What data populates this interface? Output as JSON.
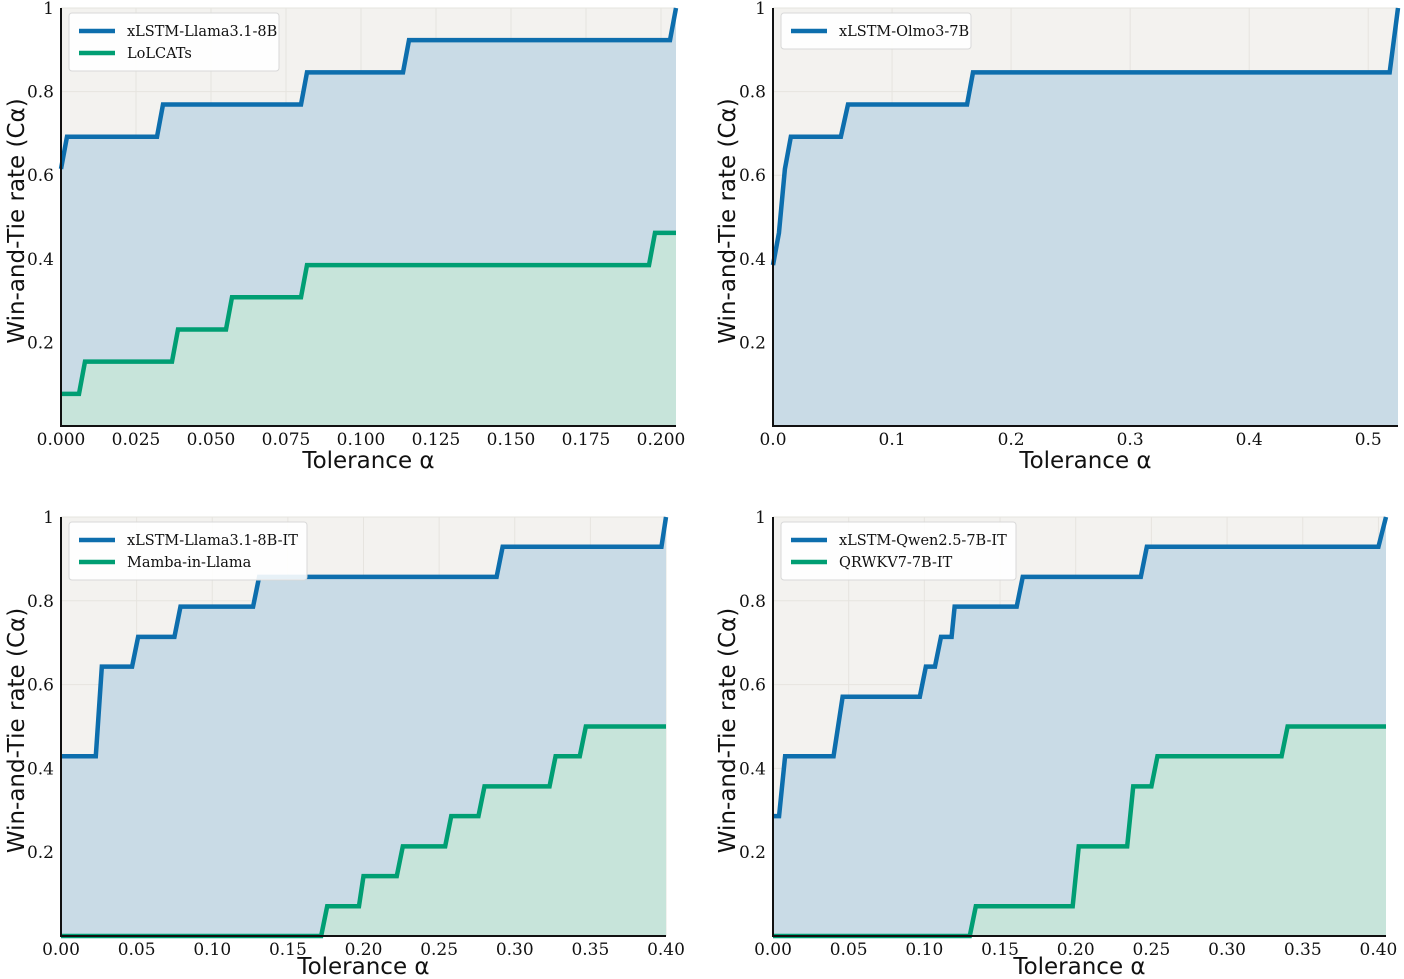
{
  "colors": {
    "blue": "#1f77b4",
    "blue_line": "#0d6ead",
    "green": "#009e73",
    "blue_fill": "#c9dbe6",
    "green_fill": "#c7e4da",
    "plot_bg": "#f3f2ef",
    "grid": "#e6e4df",
    "axis": "#111111"
  },
  "chart_data": [
    {
      "type": "line",
      "title": "",
      "xlabel": "Tolerance α",
      "ylabel": "Win-and-Tie rate (Cα)",
      "xlim": [
        0,
        0.205
      ],
      "ylim": [
        0,
        1
      ],
      "xticks": [
        0.0,
        0.025,
        0.05,
        0.075,
        0.1,
        0.125,
        0.15,
        0.175,
        0.2
      ],
      "xtick_labels": [
        "0.000",
        "0.025",
        "0.050",
        "0.075",
        "0.100",
        "0.125",
        "0.150",
        "0.175",
        "0.200"
      ],
      "yticks": [
        0.2,
        0.4,
        0.6,
        0.8,
        1.0
      ],
      "ytick_labels": [
        "0.2",
        "0.4",
        "0.6",
        "0.8",
        "1"
      ],
      "legend_position": "top-left",
      "series": [
        {
          "name": "xLSTM-Llama3.1-8B",
          "color_key": "blue",
          "x": [
            0.0,
            0.002,
            0.032,
            0.034,
            0.08,
            0.082,
            0.114,
            0.116,
            0.203,
            0.205
          ],
          "y": [
            0.615,
            0.692,
            0.692,
            0.769,
            0.769,
            0.846,
            0.846,
            0.923,
            0.923,
            1.0
          ]
        },
        {
          "name": "LoLCATs",
          "color_key": "green",
          "x": [
            0.0,
            0.006,
            0.008,
            0.037,
            0.039,
            0.055,
            0.057,
            0.08,
            0.082,
            0.196,
            0.198,
            0.205
          ],
          "y": [
            0.077,
            0.077,
            0.154,
            0.154,
            0.231,
            0.231,
            0.308,
            0.308,
            0.385,
            0.385,
            0.462,
            0.462
          ]
        }
      ]
    },
    {
      "type": "line",
      "title": "",
      "xlabel": "Tolerance α",
      "ylabel": "Win-and-Tie rate (Cα)",
      "xlim": [
        0,
        0.525
      ],
      "ylim": [
        0,
        1
      ],
      "xticks": [
        0.0,
        0.1,
        0.2,
        0.3,
        0.4,
        0.5
      ],
      "xtick_labels": [
        "0.0",
        "0.1",
        "0.2",
        "0.3",
        "0.4",
        "0.5"
      ],
      "yticks": [
        0.2,
        0.4,
        0.6,
        0.8,
        1.0
      ],
      "ytick_labels": [
        "0.2",
        "0.4",
        "0.6",
        "0.8",
        "1"
      ],
      "legend_position": "top-left",
      "series": [
        {
          "name": "xLSTM-Olmo3-7B",
          "color_key": "blue",
          "x": [
            0.0,
            0.005,
            0.01,
            0.015,
            0.057,
            0.063,
            0.163,
            0.168,
            0.518,
            0.525
          ],
          "y": [
            0.385,
            0.462,
            0.615,
            0.692,
            0.692,
            0.769,
            0.769,
            0.846,
            0.846,
            1.0
          ]
        }
      ]
    },
    {
      "type": "line",
      "title": "",
      "xlabel": "Tolerance α",
      "ylabel": "Win-and-Tie rate (Cα)",
      "xlim": [
        0,
        0.4
      ],
      "ylim": [
        0,
        1
      ],
      "xticks": [
        0.0,
        0.05,
        0.1,
        0.15,
        0.2,
        0.25,
        0.3,
        0.35,
        0.4
      ],
      "xtick_labels": [
        "0.00",
        "0.05",
        "0.10",
        "0.15",
        "0.20",
        "0.25",
        "0.30",
        "0.35",
        "0.40"
      ],
      "yticks": [
        0.2,
        0.4,
        0.6,
        0.8,
        1.0
      ],
      "ytick_labels": [
        "0.2",
        "0.4",
        "0.6",
        "0.8",
        "1"
      ],
      "legend_position": "top-left",
      "series": [
        {
          "name": "xLSTM-Llama3.1-8B-IT",
          "color_key": "blue",
          "x": [
            0.0,
            0.023,
            0.027,
            0.047,
            0.051,
            0.075,
            0.079,
            0.127,
            0.131,
            0.288,
            0.292,
            0.397,
            0.4
          ],
          "y": [
            0.429,
            0.429,
            0.643,
            0.643,
            0.714,
            0.714,
            0.786,
            0.786,
            0.857,
            0.857,
            0.929,
            0.929,
            1.0
          ]
        },
        {
          "name": "Mamba-in-Llama",
          "color_key": "green",
          "x": [
            0.0,
            0.172,
            0.176,
            0.197,
            0.2,
            0.222,
            0.226,
            0.254,
            0.258,
            0.276,
            0.28,
            0.323,
            0.327,
            0.343,
            0.347,
            0.4
          ],
          "y": [
            0.0,
            0.0,
            0.071,
            0.071,
            0.143,
            0.143,
            0.214,
            0.214,
            0.286,
            0.286,
            0.357,
            0.357,
            0.429,
            0.429,
            0.5,
            0.5
          ]
        }
      ]
    },
    {
      "type": "line",
      "title": "",
      "xlabel": "Tolerance α",
      "ylabel": "Win-and-Tie rate (Cα)",
      "xlim": [
        0,
        0.405
      ],
      "ylim": [
        0,
        1
      ],
      "xticks": [
        0.0,
        0.05,
        0.1,
        0.15,
        0.2,
        0.25,
        0.3,
        0.35,
        0.4
      ],
      "xtick_labels": [
        "0.00",
        "0.05",
        "0.10",
        "0.15",
        "0.20",
        "0.25",
        "0.30",
        "0.35",
        "0.40"
      ],
      "yticks": [
        0.2,
        0.4,
        0.6,
        0.8,
        1.0
      ],
      "ytick_labels": [
        "0.2",
        "0.4",
        "0.6",
        "0.8",
        "1"
      ],
      "legend_position": "top-left",
      "series": [
        {
          "name": "xLSTM-Qwen2.5-7B-IT",
          "color_key": "blue",
          "x": [
            0.0,
            0.004,
            0.008,
            0.04,
            0.046,
            0.097,
            0.101,
            0.107,
            0.111,
            0.115,
            0.118,
            0.12,
            0.124,
            0.161,
            0.165,
            0.243,
            0.247,
            0.4,
            0.405
          ],
          "y": [
            0.286,
            0.286,
            0.429,
            0.429,
            0.571,
            0.571,
            0.643,
            0.643,
            0.714,
            0.714,
            0.714,
            0.786,
            0.786,
            0.786,
            0.857,
            0.857,
            0.929,
            0.929,
            1.0
          ]
        },
        {
          "name": "QRWKV7-7B-IT",
          "color_key": "green",
          "x": [
            0.0,
            0.13,
            0.134,
            0.198,
            0.202,
            0.234,
            0.238,
            0.25,
            0.254,
            0.336,
            0.34,
            0.405
          ],
          "y": [
            0.0,
            0.0,
            0.071,
            0.071,
            0.214,
            0.214,
            0.357,
            0.357,
            0.429,
            0.429,
            0.5,
            0.5
          ]
        }
      ]
    }
  ]
}
